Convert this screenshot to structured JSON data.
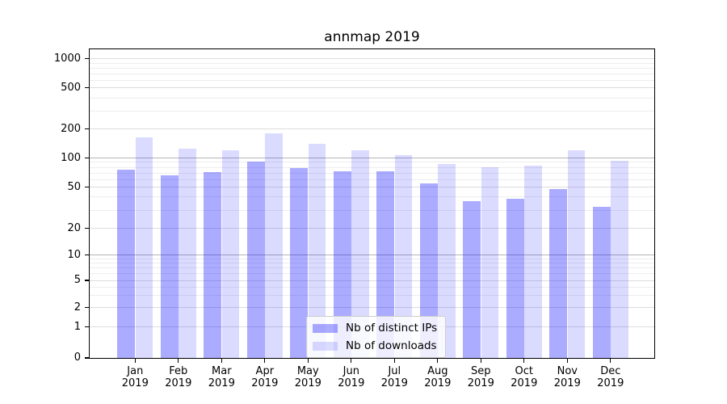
{
  "chart_data": {
    "type": "bar",
    "title": "annmap 2019",
    "categories": [
      "Jan",
      "Feb",
      "Mar",
      "Apr",
      "May",
      "Jun",
      "Jul",
      "Aug",
      "Sep",
      "Oct",
      "Nov",
      "Dec"
    ],
    "x_tick_second_line": "2019",
    "series": [
      {
        "name": "Nb of distinct IPs",
        "color": "rgba(0,0,255,0.33)",
        "values": [
          75,
          66,
          71,
          91,
          78,
          72,
          72,
          54,
          36,
          38,
          47,
          32
        ]
      },
      {
        "name": "Nb of downloads",
        "color": "rgba(0,0,255,0.14)",
        "values": [
          162,
          125,
          118,
          178,
          140,
          119,
          107,
          85,
          79,
          83,
          120,
          93
        ]
      }
    ],
    "yscale": "symlog",
    "ytick_values": [
      0,
      1,
      2,
      5,
      10,
      20,
      50,
      100,
      200,
      500,
      1000
    ],
    "ylabel": "",
    "xlabel": "",
    "grid": true,
    "legend": {
      "position": "lower center"
    },
    "colors": {
      "background": "#ffffff",
      "grid_major": "#b5b5b5",
      "grid_minor": "#ededed",
      "axis": "#000000"
    }
  }
}
